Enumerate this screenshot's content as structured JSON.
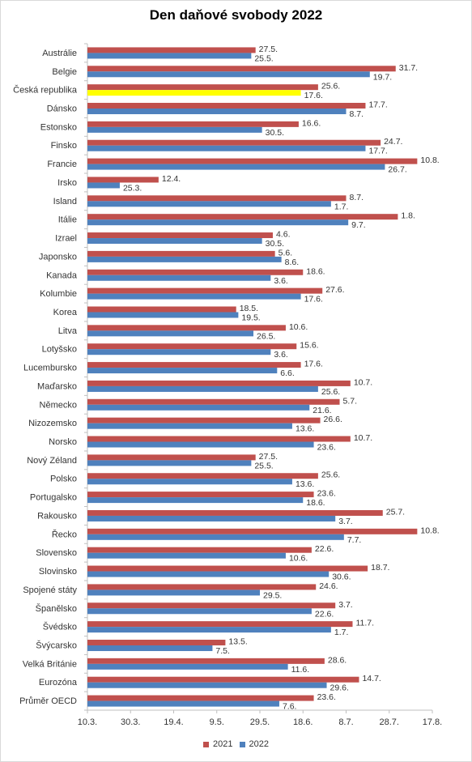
{
  "chart_data": {
    "type": "bar",
    "orientation": "horizontal",
    "title": "Den daňové svobody 2022",
    "x_axis": {
      "type": "day-of-year",
      "ticks": [
        "10.3.",
        "30.3.",
        "19.4.",
        "9.5.",
        "29.5.",
        "18.6.",
        "8.7.",
        "28.7.",
        "17.8."
      ],
      "range": [
        "10.3.",
        "17.8."
      ]
    },
    "legend_position": "bottom",
    "grid": false,
    "categories": [
      "Austrálie",
      "Belgie",
      "Česká republika",
      "Dánsko",
      "Estonsko",
      "Finsko",
      "Francie",
      "Irsko",
      "Island",
      "Itálie",
      "Izrael",
      "Japonsko",
      "Kanada",
      "Kolumbie",
      "Korea",
      "Litva",
      "Lotyšsko",
      "Lucembursko",
      "Maďarsko",
      "Německo",
      "Nizozemsko",
      "Norsko",
      "Nový Zéland",
      "Polsko",
      "Portugalsko",
      "Rakousko",
      "Řecko",
      "Slovensko",
      "Slovinsko",
      "Spojené státy",
      "Španělsko",
      "Švédsko",
      "Švýcarsko",
      "Velká Británie",
      "Eurozóna",
      "Průměr OECD"
    ],
    "highlight": {
      "category": "Česká republika",
      "series": "2022",
      "color": "#ffff00"
    },
    "series": [
      {
        "name": "2021",
        "color": "#c0504d",
        "values": [
          "27.5.",
          "31.7.",
          "25.6.",
          "17.7.",
          "16.6.",
          "24.7.",
          "10.8.",
          "12.4.",
          "8.7.",
          "1.8.",
          "4.6.",
          "5.6.",
          "18.6.",
          "27.6.",
          "18.5.",
          "10.6.",
          "15.6.",
          "17.6.",
          "10.7.",
          "5.7.",
          "26.6.",
          "10.7.",
          "27.5.",
          "25.6.",
          "23.6.",
          "25.7.",
          "10.8.",
          "22.6.",
          "18.7.",
          "24.6.",
          "3.7.",
          "11.7.",
          "13.5.",
          "28.6.",
          "14.7.",
          "23.6."
        ]
      },
      {
        "name": "2022",
        "color": "#4f81bd",
        "values": [
          "25.5.",
          "19.7.",
          "17.6.",
          "8.7.",
          "30.5.",
          "17.7.",
          "26.7.",
          "25.3.",
          "1.7.",
          "9.7.",
          "30.5.",
          "8.6.",
          "3.6.",
          "17.6.",
          "19.5.",
          "26.5.",
          "3.6.",
          "6.6.",
          "25.6.",
          "21.6.",
          "13.6.",
          "23.6.",
          "25.5.",
          "13.6.",
          "18.6.",
          "3.7.",
          "7.7.",
          "10.6.",
          "30.6.",
          "29.5.",
          "22.6.",
          "1.7.",
          "7.5.",
          "11.6.",
          "29.6.",
          "7.6."
        ]
      }
    ]
  }
}
